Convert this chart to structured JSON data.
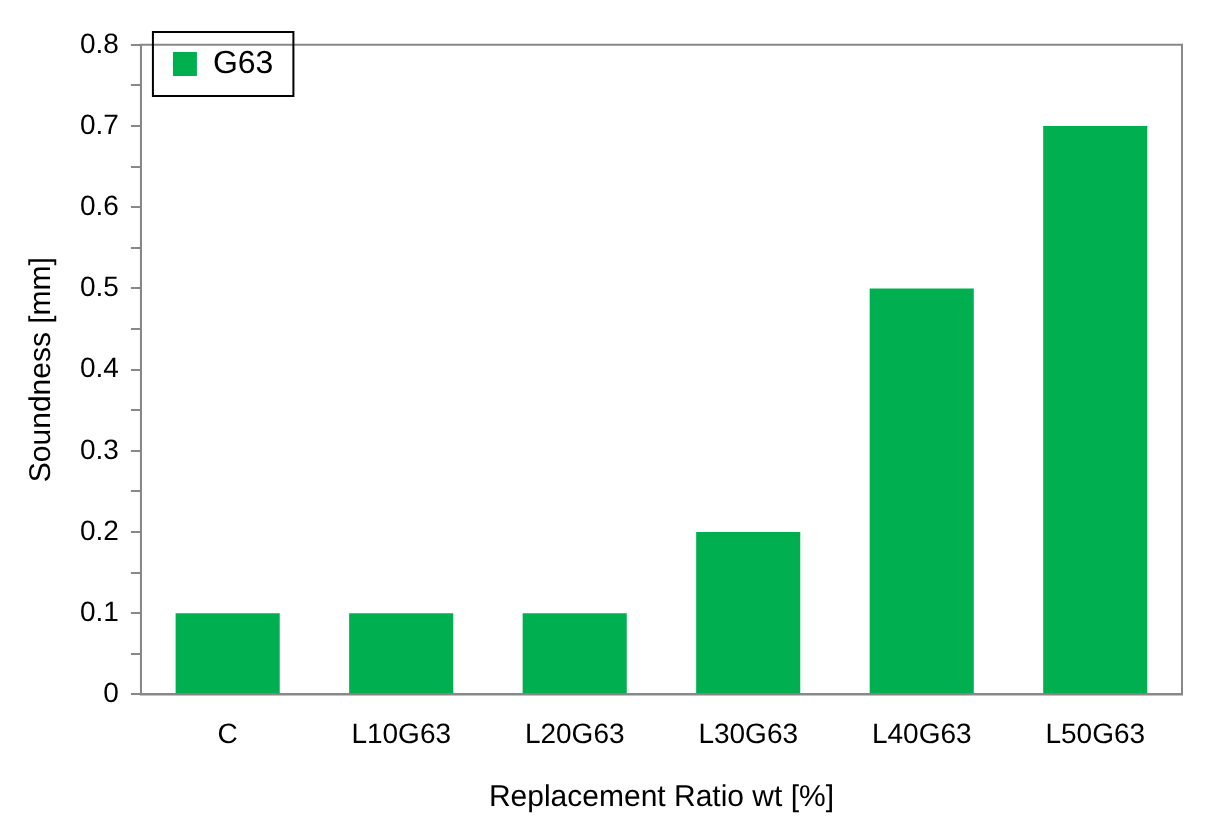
{
  "chart_data": {
    "type": "bar",
    "categories": [
      "C",
      "L10G63",
      "L20G63",
      "L30G63",
      "L40G63",
      "L50G63"
    ],
    "series": [
      {
        "name": "G63",
        "color": "#00b050",
        "values": [
          0.1,
          0.1,
          0.1,
          0.2,
          0.5,
          0.7
        ]
      }
    ],
    "xlabel": "Replacement Ratio wt [%]",
    "ylabel": "Soundness [mm]",
    "ylim": [
      0,
      0.8
    ],
    "yticks": [
      0,
      {
        "value": 0.05,
        "label": null
      },
      0.1,
      {
        "value": 0.15,
        "label": null
      },
      0.2,
      {
        "value": 0.25,
        "label": null
      },
      0.3,
      {
        "value": 0.35,
        "label": null
      },
      0.4,
      {
        "value": 0.45,
        "label": null
      },
      0.5,
      {
        "value": 0.55,
        "label": null
      },
      0.6,
      {
        "value": 0.65,
        "label": null
      },
      0.7,
      {
        "value": 0.75,
        "label": null
      },
      0.8
    ],
    "grid": false,
    "legend": "top left"
  }
}
